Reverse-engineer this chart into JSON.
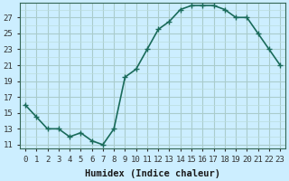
{
  "x": [
    0,
    1,
    2,
    3,
    4,
    5,
    6,
    7,
    8,
    9,
    10,
    11,
    12,
    13,
    14,
    15,
    16,
    17,
    18,
    19,
    20,
    21,
    22,
    23
  ],
  "y": [
    16,
    14.5,
    13,
    13,
    12,
    12.5,
    11.5,
    11,
    13,
    19.5,
    20.5,
    23,
    25.5,
    26.5,
    28,
    28.5,
    28.5,
    28.5,
    28,
    27,
    27,
    25,
    23,
    21
  ],
  "line_color": "#1a6b5a",
  "marker": "+",
  "marker_size": 4,
  "bg_color": "#cceeff",
  "grid_major_color": "#aacccc",
  "grid_minor_color": "#bbdddd",
  "xlabel": "Humidex (Indice chaleur)",
  "ylabel_ticks": [
    11,
    13,
    15,
    17,
    19,
    21,
    23,
    25,
    27
  ],
  "xtick_labels": [
    "0",
    "1",
    "2",
    "3",
    "4",
    "5",
    "6",
    "7",
    "8",
    "9",
    "10",
    "11",
    "12",
    "13",
    "14",
    "15",
    "16",
    "17",
    "18",
    "19",
    "20",
    "21",
    "22",
    "23"
  ],
  "ylim": [
    10.5,
    28.8
  ],
  "xlim": [
    -0.5,
    23.5
  ],
  "line_width": 1.2,
  "font_size": 6.5,
  "label_font_size": 7.5
}
